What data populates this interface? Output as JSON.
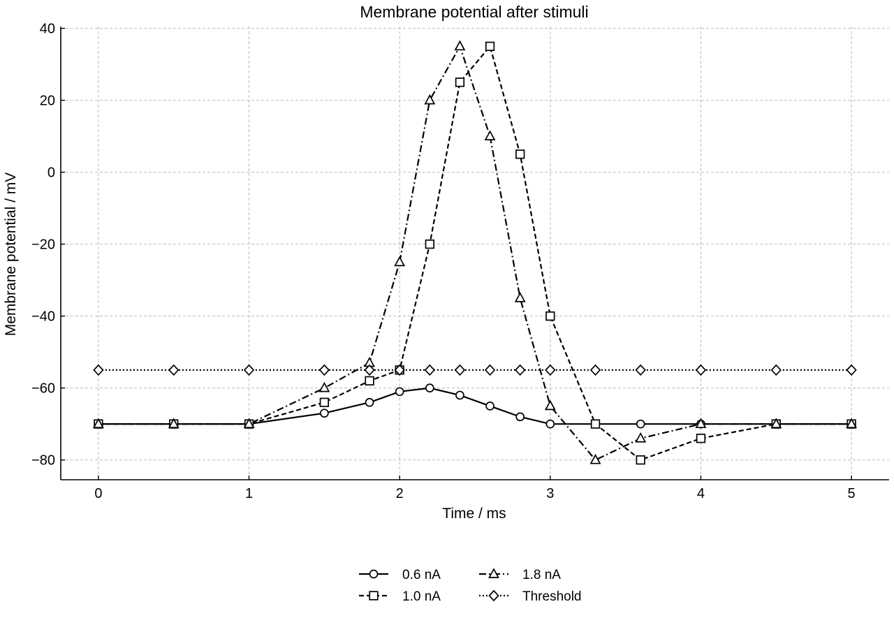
{
  "chart_data": {
    "type": "line",
    "title": "Membrane potential after stimuli",
    "xlabel": "Time / ms",
    "ylabel": "Membrane potential / mV",
    "xlim": [
      -0.25,
      5.25
    ],
    "ylim": [
      -85.5,
      40.5
    ],
    "xticks": [
      0,
      1,
      2,
      3,
      4,
      5
    ],
    "xtick_labels": [
      "0",
      "1",
      "2",
      "3",
      "4",
      "5"
    ],
    "yticks": [
      -80,
      -60,
      -40,
      -20,
      0,
      20,
      40
    ],
    "ytick_labels": [
      "−80",
      "−60",
      "−40",
      "−20",
      "0",
      "20",
      "40"
    ],
    "grid": true,
    "legend_position": "bottom-center",
    "series": [
      {
        "name": "0.6 nA",
        "marker": "circle",
        "linestyle": "solid",
        "color": "#000000",
        "points": [
          [
            0,
            -70
          ],
          [
            0.5,
            -70
          ],
          [
            1,
            -70
          ],
          [
            1.5,
            -67
          ],
          [
            1.8,
            -64
          ],
          [
            2,
            -61
          ],
          [
            2.2,
            -60
          ],
          [
            2.4,
            -62
          ],
          [
            2.6,
            -65
          ],
          [
            2.8,
            -68
          ],
          [
            3,
            -70
          ],
          [
            3.3,
            -70
          ],
          [
            3.6,
            -70
          ],
          [
            4,
            -70
          ],
          [
            4.5,
            -70
          ],
          [
            5,
            -70
          ]
        ]
      },
      {
        "name": "1.0 nA",
        "marker": "square",
        "linestyle": "dashed",
        "color": "#000000",
        "points": [
          [
            0,
            -70
          ],
          [
            0.5,
            -70
          ],
          [
            1,
            -70
          ],
          [
            1.5,
            -64
          ],
          [
            1.8,
            -58
          ],
          [
            2,
            -55
          ],
          [
            2.2,
            -20
          ],
          [
            2.4,
            25
          ],
          [
            2.6,
            35
          ],
          [
            2.8,
            5
          ],
          [
            3,
            -40
          ],
          [
            3.3,
            -70
          ],
          [
            3.6,
            -80
          ],
          [
            4,
            -74
          ],
          [
            4.5,
            -70
          ],
          [
            5,
            -70
          ]
        ]
      },
      {
        "name": "1.8 nA",
        "marker": "triangle",
        "linestyle": "dashdot",
        "color": "#000000",
        "points": [
          [
            0,
            -70
          ],
          [
            0.5,
            -70
          ],
          [
            1,
            -70
          ],
          [
            1.5,
            -60
          ],
          [
            1.8,
            -53
          ],
          [
            2,
            -25
          ],
          [
            2.2,
            20
          ],
          [
            2.4,
            35
          ],
          [
            2.6,
            10
          ],
          [
            2.8,
            -35
          ],
          [
            3,
            -65
          ],
          [
            3.3,
            -80
          ],
          [
            3.6,
            -74
          ],
          [
            4,
            -70
          ],
          [
            4.5,
            -70
          ],
          [
            5,
            -70
          ]
        ]
      },
      {
        "name": "Threshold",
        "marker": "diamond",
        "linestyle": "dotted",
        "color": "#000000",
        "points": [
          [
            0,
            -55
          ],
          [
            0.5,
            -55
          ],
          [
            1,
            -55
          ],
          [
            1.5,
            -55
          ],
          [
            1.8,
            -55
          ],
          [
            2,
            -55
          ],
          [
            2.2,
            -55
          ],
          [
            2.4,
            -55
          ],
          [
            2.6,
            -55
          ],
          [
            2.8,
            -55
          ],
          [
            3,
            -55
          ],
          [
            3.3,
            -55
          ],
          [
            3.6,
            -55
          ],
          [
            4,
            -55
          ],
          [
            4.5,
            -55
          ],
          [
            5,
            -55
          ]
        ]
      }
    ]
  }
}
